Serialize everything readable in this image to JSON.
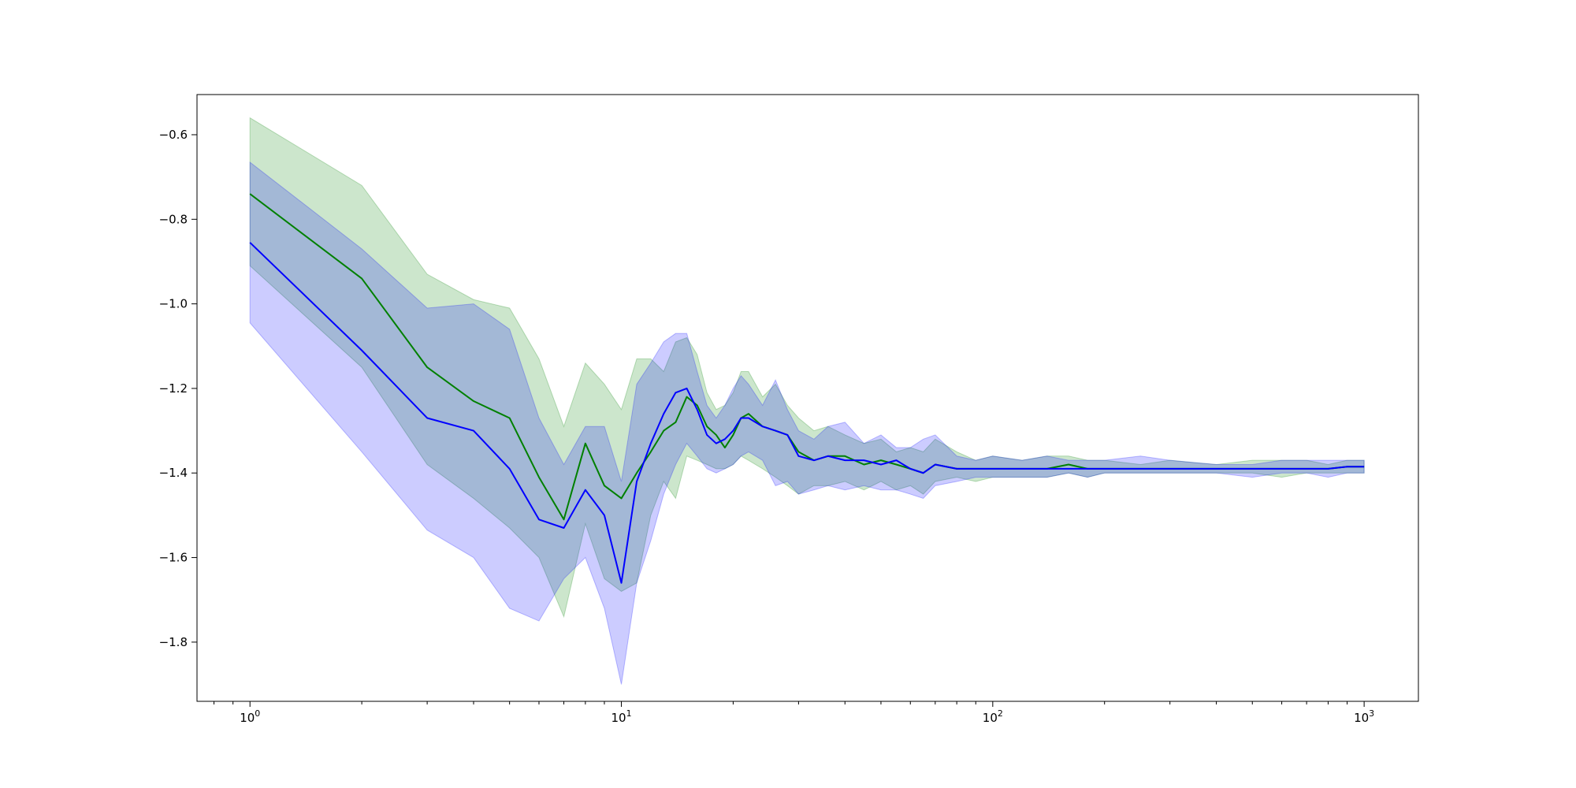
{
  "chart_data": {
    "type": "line",
    "x_scale": "log",
    "xlim": [
      0.72,
      1400
    ],
    "ylim": [
      -1.94,
      -0.505
    ],
    "grid": false,
    "legend": "none",
    "x_ticks": [
      {
        "value": 1,
        "base": "10",
        "exp": "0"
      },
      {
        "value": 10,
        "base": "10",
        "exp": "1"
      },
      {
        "value": 100,
        "base": "10",
        "exp": "2"
      },
      {
        "value": 1000,
        "base": "10",
        "exp": "3"
      }
    ],
    "y_ticks": [
      {
        "value": -0.6,
        "label": "−0.6"
      },
      {
        "value": -0.8,
        "label": "−0.8"
      },
      {
        "value": -1.0,
        "label": "−1.0"
      },
      {
        "value": -1.2,
        "label": "−1.2"
      },
      {
        "value": -1.4,
        "label": "−1.4"
      },
      {
        "value": -1.6,
        "label": "−1.6"
      },
      {
        "value": -1.8,
        "label": "−1.8"
      }
    ],
    "colors": {
      "green_line": "#008000",
      "green_band": "#008000",
      "blue_line": "#0000ff",
      "blue_band": "#0000ff"
    },
    "series": [
      {
        "color": "green",
        "x": [
          1,
          2,
          3,
          4,
          5,
          6,
          7,
          8,
          9,
          10,
          11,
          12,
          13,
          14,
          15,
          16,
          17,
          18,
          19,
          20,
          21,
          22,
          24,
          26,
          28,
          30,
          33,
          36,
          40,
          45,
          50,
          55,
          60,
          65,
          70,
          80,
          90,
          100,
          120,
          140,
          160,
          180,
          200,
          250,
          300,
          400,
          500,
          600,
          700,
          800,
          900,
          1000
        ],
        "y": [
          -0.74,
          -0.94,
          -1.15,
          -1.23,
          -1.27,
          -1.41,
          -1.51,
          -1.33,
          -1.43,
          -1.46,
          -1.4,
          -1.35,
          -1.3,
          -1.28,
          -1.22,
          -1.24,
          -1.29,
          -1.31,
          -1.34,
          -1.31,
          -1.27,
          -1.26,
          -1.29,
          -1.3,
          -1.31,
          -1.35,
          -1.37,
          -1.36,
          -1.36,
          -1.38,
          -1.37,
          -1.38,
          -1.39,
          -1.4,
          -1.38,
          -1.39,
          -1.39,
          -1.39,
          -1.39,
          -1.39,
          -1.38,
          -1.39,
          -1.39,
          -1.39,
          -1.39,
          -1.39,
          -1.39,
          -1.39,
          -1.39,
          -1.39,
          -1.385,
          -1.385
        ],
        "lower": [
          -0.91,
          -1.15,
          -1.38,
          -1.46,
          -1.53,
          -1.6,
          -1.74,
          -1.52,
          -1.65,
          -1.68,
          -1.66,
          -1.5,
          -1.42,
          -1.46,
          -1.36,
          -1.37,
          -1.38,
          -1.39,
          -1.39,
          -1.38,
          -1.36,
          -1.37,
          -1.39,
          -1.41,
          -1.43,
          -1.45,
          -1.43,
          -1.43,
          -1.42,
          -1.44,
          -1.42,
          -1.44,
          -1.43,
          -1.45,
          -1.42,
          -1.41,
          -1.42,
          -1.41,
          -1.41,
          -1.41,
          -1.4,
          -1.41,
          -1.4,
          -1.4,
          -1.4,
          -1.4,
          -1.4,
          -1.41,
          -1.4,
          -1.4,
          -1.4,
          -1.4
        ],
        "upper": [
          -0.56,
          -0.72,
          -0.93,
          -0.99,
          -1.01,
          -1.13,
          -1.29,
          -1.14,
          -1.19,
          -1.25,
          -1.13,
          -1.13,
          -1.16,
          -1.09,
          -1.08,
          -1.12,
          -1.21,
          -1.25,
          -1.24,
          -1.21,
          -1.16,
          -1.16,
          -1.22,
          -1.19,
          -1.24,
          -1.27,
          -1.3,
          -1.29,
          -1.31,
          -1.33,
          -1.32,
          -1.35,
          -1.34,
          -1.35,
          -1.32,
          -1.35,
          -1.37,
          -1.36,
          -1.37,
          -1.36,
          -1.36,
          -1.37,
          -1.37,
          -1.38,
          -1.37,
          -1.38,
          -1.37,
          -1.37,
          -1.37,
          -1.38,
          -1.37,
          -1.37
        ]
      },
      {
        "color": "blue",
        "x": [
          1,
          2,
          3,
          4,
          5,
          6,
          7,
          8,
          9,
          10,
          11,
          12,
          13,
          14,
          15,
          16,
          17,
          18,
          19,
          20,
          21,
          22,
          24,
          26,
          28,
          30,
          33,
          36,
          40,
          45,
          50,
          55,
          60,
          65,
          70,
          80,
          90,
          100,
          120,
          140,
          160,
          180,
          200,
          250,
          300,
          400,
          500,
          600,
          700,
          800,
          900,
          1000
        ],
        "y": [
          -0.855,
          -1.11,
          -1.27,
          -1.3,
          -1.39,
          -1.51,
          -1.53,
          -1.44,
          -1.5,
          -1.66,
          -1.42,
          -1.33,
          -1.26,
          -1.21,
          -1.2,
          -1.25,
          -1.31,
          -1.33,
          -1.32,
          -1.3,
          -1.27,
          -1.27,
          -1.29,
          -1.3,
          -1.31,
          -1.36,
          -1.37,
          -1.36,
          -1.37,
          -1.37,
          -1.38,
          -1.37,
          -1.39,
          -1.4,
          -1.38,
          -1.39,
          -1.39,
          -1.39,
          -1.39,
          -1.39,
          -1.39,
          -1.39,
          -1.39,
          -1.39,
          -1.39,
          -1.39,
          -1.39,
          -1.39,
          -1.39,
          -1.39,
          -1.385,
          -1.385
        ],
        "lower": [
          -1.045,
          -1.35,
          -1.535,
          -1.6,
          -1.72,
          -1.75,
          -1.65,
          -1.6,
          -1.72,
          -1.9,
          -1.66,
          -1.56,
          -1.45,
          -1.38,
          -1.33,
          -1.36,
          -1.39,
          -1.4,
          -1.39,
          -1.38,
          -1.36,
          -1.35,
          -1.37,
          -1.43,
          -1.42,
          -1.45,
          -1.44,
          -1.43,
          -1.44,
          -1.43,
          -1.44,
          -1.44,
          -1.45,
          -1.46,
          -1.43,
          -1.42,
          -1.41,
          -1.41,
          -1.41,
          -1.41,
          -1.4,
          -1.41,
          -1.4,
          -1.4,
          -1.4,
          -1.4,
          -1.41,
          -1.4,
          -1.4,
          -1.41,
          -1.4,
          -1.4
        ],
        "upper": [
          -0.665,
          -0.87,
          -1.01,
          -1.0,
          -1.06,
          -1.27,
          -1.38,
          -1.29,
          -1.29,
          -1.42,
          -1.19,
          -1.14,
          -1.09,
          -1.07,
          -1.07,
          -1.16,
          -1.24,
          -1.27,
          -1.24,
          -1.2,
          -1.17,
          -1.19,
          -1.24,
          -1.18,
          -1.25,
          -1.3,
          -1.32,
          -1.29,
          -1.28,
          -1.33,
          -1.31,
          -1.34,
          -1.34,
          -1.32,
          -1.31,
          -1.36,
          -1.37,
          -1.36,
          -1.37,
          -1.36,
          -1.37,
          -1.37,
          -1.37,
          -1.36,
          -1.37,
          -1.38,
          -1.38,
          -1.37,
          -1.37,
          -1.37,
          -1.37,
          -1.37
        ]
      }
    ]
  }
}
